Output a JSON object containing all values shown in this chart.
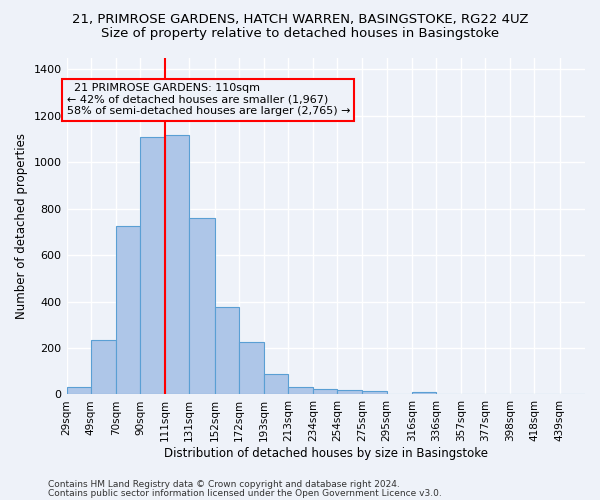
{
  "title1": "21, PRIMROSE GARDENS, HATCH WARREN, BASINGSTOKE, RG22 4UZ",
  "title2": "Size of property relative to detached houses in Basingstoke",
  "xlabel": "Distribution of detached houses by size in Basingstoke",
  "ylabel": "Number of detached properties",
  "bin_labels": [
    "29sqm",
    "49sqm",
    "70sqm",
    "90sqm",
    "111sqm",
    "131sqm",
    "152sqm",
    "172sqm",
    "193sqm",
    "213sqm",
    "234sqm",
    "254sqm",
    "275sqm",
    "295sqm",
    "316sqm",
    "336sqm",
    "357sqm",
    "377sqm",
    "398sqm",
    "418sqm",
    "439sqm"
  ],
  "bin_edges": [
    29,
    49,
    70,
    90,
    111,
    131,
    152,
    172,
    193,
    213,
    234,
    254,
    275,
    295,
    316,
    336,
    357,
    377,
    398,
    418,
    439,
    460
  ],
  "bar_heights": [
    30,
    235,
    725,
    1110,
    1115,
    760,
    375,
    225,
    90,
    30,
    25,
    20,
    15,
    0,
    10,
    0,
    0,
    0,
    0,
    0,
    0
  ],
  "bar_color": "#aec6e8",
  "bar_edge_color": "#5a9fd4",
  "red_line_x": 111,
  "annotation_line1": "  21 PRIMROSE GARDENS: 110sqm",
  "annotation_line2": "← 42% of detached houses are smaller (1,967)",
  "annotation_line3": "58% of semi-detached houses are larger (2,765) →",
  "ylim": [
    0,
    1450
  ],
  "yticks": [
    0,
    200,
    400,
    600,
    800,
    1000,
    1200,
    1400
  ],
  "footer1": "Contains HM Land Registry data © Crown copyright and database right 2024.",
  "footer2": "Contains public sector information licensed under the Open Government Licence v3.0.",
  "bg_color": "#eef2f9",
  "grid_color": "#ffffff",
  "title_fontsize": 9.5,
  "subtitle_fontsize": 9.5,
  "tick_fontsize": 7.5,
  "ylabel_fontsize": 8.5,
  "xlabel_fontsize": 8.5,
  "annotation_fontsize": 8.0,
  "footer_fontsize": 6.5
}
